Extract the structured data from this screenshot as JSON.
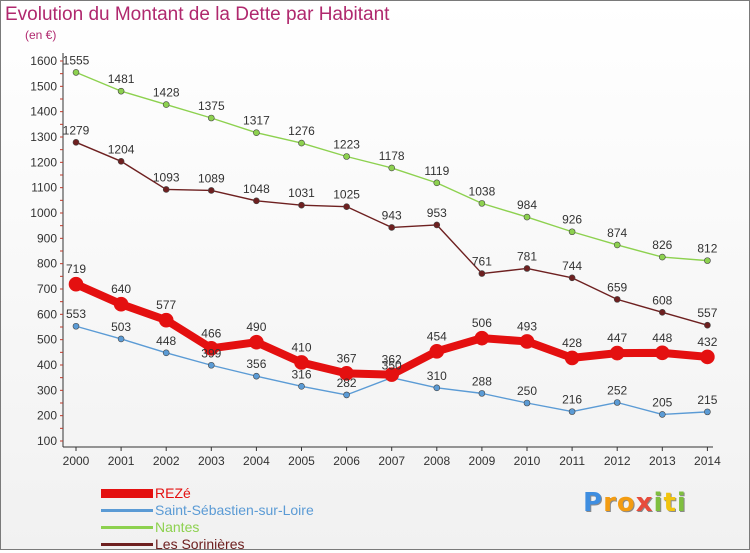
{
  "chart_data": {
    "type": "line",
    "title": "Evolution du Montant de la Dette par Habitant",
    "unit_label": "(en €)",
    "xlabel": "",
    "ylabel": "",
    "x": [
      "2000",
      "2001",
      "2002",
      "2003",
      "2004",
      "2005",
      "2006",
      "2007",
      "2008",
      "2009",
      "2010",
      "2011",
      "2012",
      "2013",
      "2014"
    ],
    "ylim": [
      100,
      1600
    ],
    "yticks": [
      100,
      200,
      300,
      400,
      500,
      600,
      700,
      800,
      900,
      1000,
      1100,
      1200,
      1300,
      1400,
      1500,
      1600
    ],
    "grid": false,
    "legend_position": "bottom-left",
    "series": [
      {
        "name": "REZé",
        "color": "#e41010",
        "emphasis": true,
        "values": [
          719,
          640,
          577,
          466,
          490,
          410,
          367,
          362,
          454,
          506,
          493,
          428,
          447,
          448,
          432
        ]
      },
      {
        "name": "Saint-Sébastien-sur-Loire",
        "color": "#5b9bd5",
        "values": [
          553,
          503,
          448,
          399,
          356,
          316,
          282,
          350,
          310,
          288,
          250,
          216,
          252,
          205,
          215
        ]
      },
      {
        "name": "Nantes",
        "color": "#8dd14f",
        "values": [
          1555,
          1481,
          1428,
          1375,
          1317,
          1276,
          1223,
          1178,
          1119,
          1038,
          984,
          926,
          874,
          826,
          812
        ]
      },
      {
        "name": "Les Sorinières",
        "color": "#6e2020",
        "values": [
          1279,
          1204,
          1093,
          1089,
          1048,
          1031,
          1025,
          943,
          953,
          761,
          781,
          744,
          659,
          608,
          557
        ]
      }
    ]
  },
  "logo": {
    "letters": [
      "P",
      "r",
      "o",
      "x",
      "i",
      "t",
      "i"
    ],
    "colors": [
      "#3f8ee0",
      "#f39c12",
      "#f39c12",
      "#e74c3c",
      "#7fbf3f",
      "#f1c40f",
      "#7fbf3f"
    ]
  }
}
